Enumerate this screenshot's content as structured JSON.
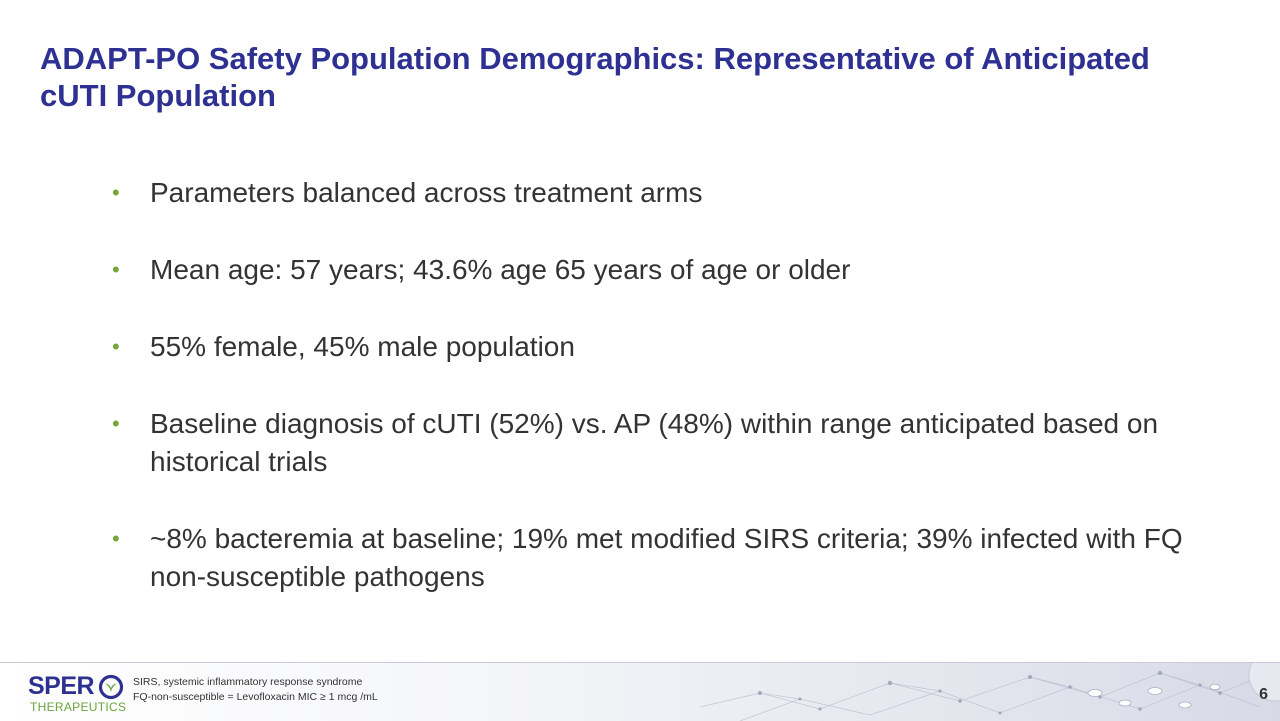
{
  "slide": {
    "title": "ADAPT-PO Safety Population Demographics: Representative of Anticipated cUTI Population",
    "bullet_glyph": "•",
    "bullets": [
      {
        "text": "Parameters balanced across treatment arms"
      },
      {
        "text": "Mean age: 57 years; 43.6% age 65 years of age or older"
      },
      {
        "text": "55% female, 45% male population"
      },
      {
        "text": "Baseline diagnosis of cUTI (52%) vs. AP (48%) within range anticipated based on historical trials"
      },
      {
        "text": "~8% bacteremia at baseline; 19% met modified SIRS criteria; 39% infected with FQ non-susceptible pathogens"
      }
    ]
  },
  "footer": {
    "logo_main": "SPER",
    "logo_sub": "THERAPEUTICS",
    "logo_mark_icon": "spero-o-leaf-icon",
    "notes": [
      "SIRS, systemic inflammatory response syndrome",
      "FQ-non-susceptible = Levofloxacin MIC ≥ 1 mcg /mL"
    ],
    "page_number": "6",
    "decoration_icon": "molecular-network-pattern-icon"
  },
  "colors": {
    "title": "#2e3192",
    "bullet": "#7aa33b",
    "body_text": "#333333",
    "logo_blue": "#2e3192",
    "logo_green": "#6aa33b"
  }
}
